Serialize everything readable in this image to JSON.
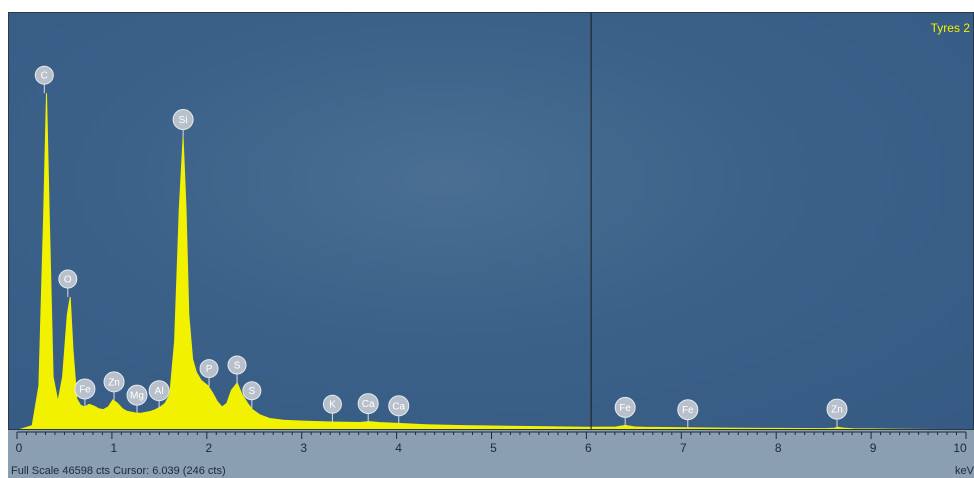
{
  "status": {
    "full_scale_text": "Full Scale 46598 cts Cursor: 6.039  (246 cts)",
    "unit_label": "keV"
  },
  "chart_data": {
    "type": "line",
    "series_label": "Tyres 2",
    "xlabel": "keV",
    "ylabel": "",
    "xlim": [
      0,
      10
    ],
    "ylim": [
      0,
      46598
    ],
    "x_ticks": [
      "0",
      "1",
      "2",
      "3",
      "4",
      "5",
      "6",
      "7",
      "8",
      "9",
      "10"
    ],
    "cursor_kev": 6.039,
    "cursor_counts": 246,
    "full_scale_counts": 46598,
    "colors": {
      "spectrum": "#f2f200",
      "background": "#355a83",
      "cursor": "#1a1a1a",
      "badge": "#b8c0cc"
    },
    "series": [
      {
        "x": [
          0.0,
          0.15,
          0.22,
          0.27,
          0.3,
          0.33,
          0.37,
          0.42,
          0.47,
          0.52,
          0.55,
          0.58,
          0.62,
          0.66,
          0.7,
          0.75,
          0.8,
          0.85,
          0.9,
          0.95,
          1.0,
          1.05,
          1.1,
          1.15,
          1.2,
          1.25,
          1.3,
          1.35,
          1.4,
          1.45,
          1.5,
          1.55,
          1.6,
          1.65,
          1.7,
          1.74,
          1.77,
          1.8,
          1.84,
          1.88,
          1.93,
          2.0,
          2.05,
          2.1,
          2.15,
          2.2,
          2.25,
          2.31,
          2.36,
          2.42,
          2.47,
          2.55,
          2.65,
          2.8,
          3.0,
          3.3,
          3.6,
          3.7,
          3.8,
          4.0,
          4.3,
          4.7,
          5.0,
          5.5,
          6.0,
          6.3,
          6.4,
          6.5,
          6.6,
          7.06,
          7.3,
          7.6,
          8.0,
          8.5,
          8.6,
          8.64,
          8.7,
          8.8,
          9.0,
          9.5,
          10.0
        ],
        "y": [
          0,
          500,
          5000,
          24000,
          38000,
          24000,
          6000,
          3200,
          6000,
          13000,
          15000,
          9000,
          3500,
          2800,
          2600,
          2900,
          2700,
          2400,
          2300,
          2600,
          3400,
          3000,
          2400,
          2100,
          2000,
          1900,
          1900,
          2000,
          2100,
          2300,
          2600,
          3000,
          4000,
          10000,
          25000,
          33000,
          25000,
          13000,
          8000,
          6500,
          5600,
          5000,
          4200,
          3200,
          2600,
          3000,
          4500,
          5300,
          4000,
          3000,
          2300,
          1700,
          1300,
          1100,
          1000,
          900,
          850,
          950,
          850,
          750,
          600,
          500,
          450,
          380,
          300,
          340,
          520,
          340,
          300,
          260,
          230,
          200,
          180,
          160,
          200,
          320,
          220,
          150,
          120,
          70,
          40
        ]
      }
    ],
    "peak_labels": [
      {
        "label": "C",
        "x": 0.277,
        "y": 38000
      },
      {
        "label": "O",
        "x": 0.525,
        "y": 15000
      },
      {
        "label": "Fe",
        "x": 0.705,
        "y": 2600
      },
      {
        "label": "Zn",
        "x": 1.012,
        "y": 3400
      },
      {
        "label": "Mg",
        "x": 1.254,
        "y": 1900
      },
      {
        "label": "Al",
        "x": 1.487,
        "y": 2400
      },
      {
        "label": "Si",
        "x": 1.74,
        "y": 33000
      },
      {
        "label": "P",
        "x": 2.013,
        "y": 4900
      },
      {
        "label": "S",
        "x": 2.308,
        "y": 5300
      },
      {
        "label": "S",
        "x": 2.464,
        "y": 2400
      },
      {
        "label": "K",
        "x": 3.313,
        "y": 880
      },
      {
        "label": "Ca",
        "x": 3.69,
        "y": 950
      },
      {
        "label": "Ca",
        "x": 4.012,
        "y": 700
      },
      {
        "label": "Fe",
        "x": 6.398,
        "y": 520
      },
      {
        "label": "Fe",
        "x": 7.058,
        "y": 260
      },
      {
        "label": "Zn",
        "x": 8.63,
        "y": 320
      }
    ]
  }
}
